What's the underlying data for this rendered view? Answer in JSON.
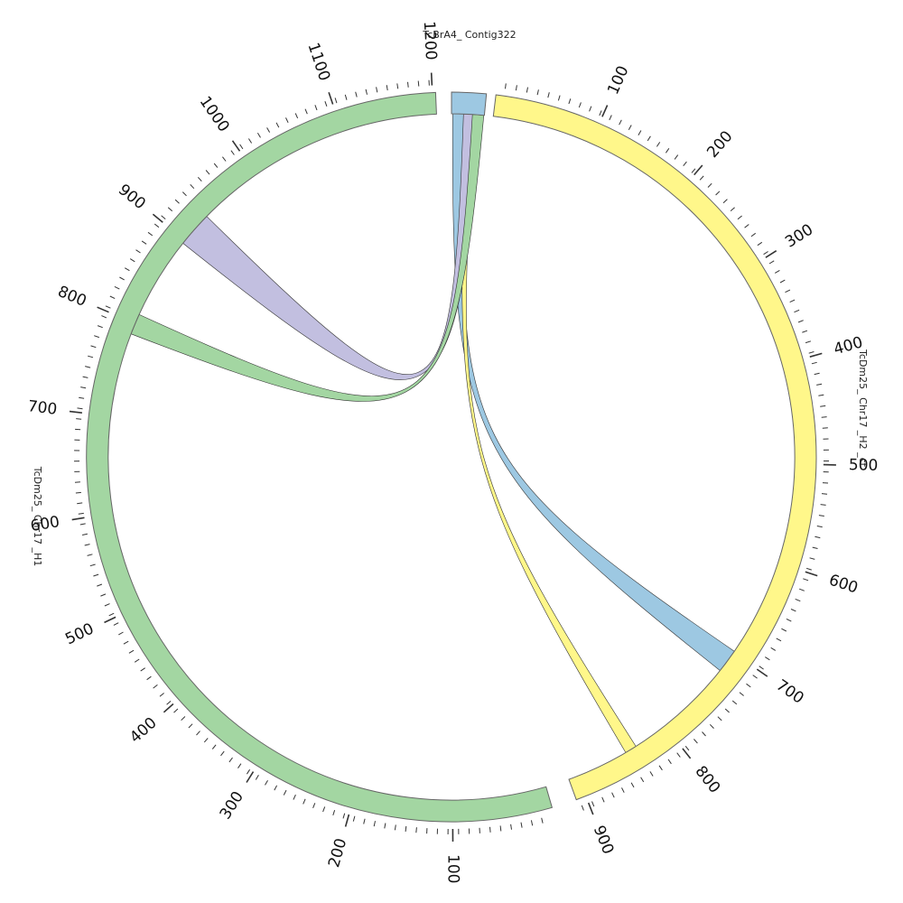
{
  "diagram": {
    "type": "circos",
    "colors": {
      "contig": "#9dc8e2",
      "h2": "#fff78a",
      "h1": "#a3d6a2",
      "purple_link": "#c2bfe0",
      "stroke": "#666666",
      "text": "#111111"
    },
    "segments": [
      {
        "id": "contig",
        "label": "TcBrA4_ Contig322",
        "color": "#9dc8e2",
        "tick_labels": []
      },
      {
        "id": "h2",
        "label": "TcDm25_ Chr17 _H2 _ct",
        "color": "#fff78a",
        "tick_labels": [
          "100",
          "200",
          "300",
          "400",
          "500",
          "600",
          "700",
          "800",
          "900"
        ]
      },
      {
        "id": "h1",
        "label": "TcDm25_ Chr17 _H1",
        "color": "#a3d6a2",
        "tick_labels": [
          "100",
          "200",
          "300",
          "400",
          "500",
          "600",
          "700",
          "800",
          "900",
          "1000",
          "1100",
          "1200"
        ]
      }
    ],
    "links": [
      {
        "from": "contig",
        "to": "h2",
        "color": "#9dc8e2"
      },
      {
        "from": "contig",
        "to": "h2",
        "color": "#fff78a"
      },
      {
        "from": "contig",
        "to": "h1",
        "color": "#c2bfe0"
      },
      {
        "from": "contig",
        "to": "h1",
        "color": "#a3d6a2"
      }
    ]
  }
}
